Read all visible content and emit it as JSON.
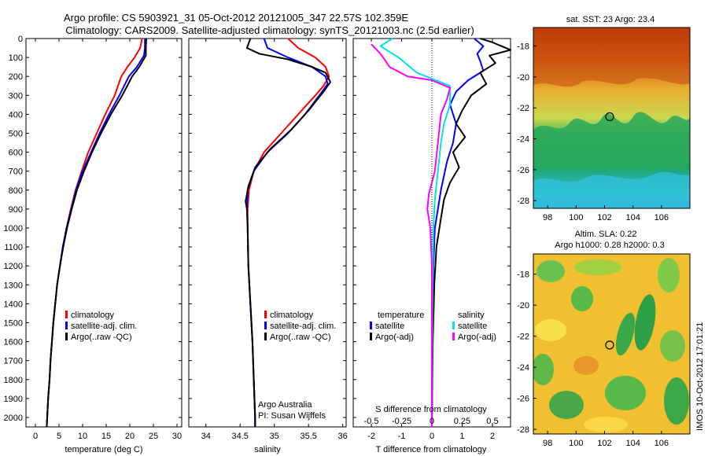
{
  "header": {
    "line1": "Argo profile: CS 5903921_31 05-Oct-2012 20121005_347 22.57S 102.359E",
    "line2": "Climatology: CARS2009. Satellite-adjusted climatology: synTS_20121003.nc (2.5d earlier)"
  },
  "colors": {
    "climatology": "#ff0000",
    "satellite": "#0000ff",
    "argo": "#000000",
    "sat_salinity": "#00e5e5",
    "argo_salinity": "#ff00ff"
  },
  "chart_data": [
    {
      "type": "line",
      "name": "temperature",
      "xlabel": "temperature (deg C)",
      "xlim": [
        -2,
        31
      ],
      "ylim": [
        0,
        2050
      ],
      "xticks": [
        "0",
        "5",
        "10",
        "15",
        "20",
        "25",
        "30"
      ],
      "yticks": [
        "0",
        "100",
        "200",
        "300",
        "400",
        "500",
        "600",
        "700",
        "800",
        "900",
        "1000",
        "1100",
        "1200",
        "1300",
        "1400",
        "1500",
        "1600",
        "1700",
        "1800",
        "1900",
        "2000"
      ],
      "legend": [
        "climatology",
        "satellite-adj. clim.",
        "Argo(..raw -QC)"
      ],
      "series": [
        {
          "name": "climatology",
          "color": "#ff0000",
          "points": [
            [
              22.6,
              0
            ],
            [
              22.2,
              50
            ],
            [
              21.0,
              100
            ],
            [
              19.5,
              150
            ],
            [
              18.2,
              200
            ],
            [
              16.8,
              300
            ],
            [
              14.8,
              400
            ],
            [
              13.0,
              500
            ],
            [
              11.2,
              600
            ],
            [
              9.8,
              700
            ],
            [
              8.5,
              800
            ],
            [
              7.5,
              900
            ],
            [
              6.6,
              1000
            ],
            [
              5.8,
              1100
            ],
            [
              5.2,
              1200
            ],
            [
              4.6,
              1300
            ],
            [
              4.2,
              1400
            ],
            [
              3.8,
              1500
            ],
            [
              3.5,
              1600
            ],
            [
              3.2,
              1700
            ],
            [
              3.0,
              1800
            ],
            [
              2.7,
              1900
            ],
            [
              2.5,
              2000
            ],
            [
              2.4,
              2050
            ]
          ]
        },
        {
          "name": "satellite-adj. clim.",
          "color": "#0000ff",
          "points": [
            [
              23.2,
              0
            ],
            [
              23.2,
              50
            ],
            [
              23.0,
              90
            ],
            [
              21.5,
              150
            ],
            [
              19.8,
              200
            ],
            [
              17.8,
              300
            ],
            [
              15.6,
              400
            ],
            [
              13.6,
              500
            ],
            [
              11.8,
              600
            ],
            [
              10.0,
              700
            ],
            [
              8.6,
              800
            ],
            [
              7.6,
              900
            ],
            [
              6.6,
              1000
            ],
            [
              5.8,
              1100
            ],
            [
              5.2,
              1200
            ],
            [
              4.6,
              1300
            ],
            [
              4.2,
              1400
            ],
            [
              3.8,
              1500
            ],
            [
              3.5,
              1600
            ],
            [
              3.2,
              1700
            ],
            [
              3.0,
              1800
            ],
            [
              2.7,
              1900
            ],
            [
              2.5,
              2000
            ],
            [
              2.4,
              2050
            ]
          ]
        },
        {
          "name": "Argo(..raw -QC)",
          "color": "#000000",
          "points": [
            [
              23.5,
              0
            ],
            [
              23.4,
              50
            ],
            [
              23.4,
              90
            ],
            [
              22.0,
              150
            ],
            [
              20.5,
              200
            ],
            [
              18.4,
              300
            ],
            [
              16.0,
              400
            ],
            [
              13.9,
              500
            ],
            [
              12.0,
              600
            ],
            [
              10.3,
              700
            ],
            [
              8.8,
              800
            ],
            [
              7.7,
              900
            ],
            [
              6.7,
              1000
            ],
            [
              5.9,
              1100
            ],
            [
              5.2,
              1200
            ],
            [
              4.6,
              1300
            ],
            [
              4.2,
              1400
            ],
            [
              3.8,
              1500
            ],
            [
              3.5,
              1600
            ],
            [
              3.2,
              1700
            ],
            [
              3.0,
              1800
            ],
            [
              2.7,
              1900
            ],
            [
              2.5,
              2000
            ],
            [
              2.4,
              2050
            ]
          ]
        }
      ]
    },
    {
      "type": "line",
      "name": "salinity",
      "xlabel": "salinity",
      "xlim": [
        33.75,
        36.05
      ],
      "ylim": [
        0,
        2050
      ],
      "xticks": [
        "34",
        "34.5",
        "35",
        "35.5",
        "36"
      ],
      "legend": [
        "climatology",
        "satellite-adj. clim.",
        "Argo(..raw -QC)"
      ],
      "annotation": [
        "Argo Australia",
        "PI: Susan Wijffels"
      ],
      "series": [
        {
          "name": "climatology",
          "color": "#ff0000",
          "points": [
            [
              35.2,
              0
            ],
            [
              35.35,
              50
            ],
            [
              35.6,
              100
            ],
            [
              35.75,
              150
            ],
            [
              35.8,
              200
            ],
            [
              35.72,
              250
            ],
            [
              35.6,
              300
            ],
            [
              35.35,
              400
            ],
            [
              35.1,
              500
            ],
            [
              34.85,
              600
            ],
            [
              34.7,
              700
            ],
            [
              34.63,
              800
            ],
            [
              34.61,
              900
            ],
            [
              34.61,
              1000
            ],
            [
              34.62,
              1200
            ],
            [
              34.65,
              1400
            ],
            [
              34.68,
              1600
            ],
            [
              34.7,
              1800
            ],
            [
              34.72,
              2000
            ],
            [
              34.72,
              2050
            ]
          ]
        },
        {
          "name": "satellite-adj. clim.",
          "color": "#0000ff",
          "points": [
            [
              34.85,
              0
            ],
            [
              34.9,
              50
            ],
            [
              35.2,
              100
            ],
            [
              35.55,
              150
            ],
            [
              35.75,
              200
            ],
            [
              35.78,
              240
            ],
            [
              35.7,
              280
            ],
            [
              35.45,
              400
            ],
            [
              35.2,
              500
            ],
            [
              34.9,
              600
            ],
            [
              34.7,
              700
            ],
            [
              34.61,
              800
            ],
            [
              34.6,
              900
            ],
            [
              34.61,
              1000
            ],
            [
              34.62,
              1200
            ],
            [
              34.65,
              1400
            ],
            [
              34.68,
              1600
            ],
            [
              34.7,
              1800
            ],
            [
              34.72,
              2000
            ],
            [
              34.72,
              2050
            ]
          ]
        },
        {
          "name": "Argo(..raw -QC)",
          "color": "#000000",
          "points": [
            [
              34.65,
              0
            ],
            [
              34.6,
              50
            ],
            [
              34.78,
              80
            ],
            [
              35.2,
              110
            ],
            [
              35.55,
              150
            ],
            [
              35.75,
              180
            ],
            [
              35.82,
              230
            ],
            [
              35.72,
              280
            ],
            [
              35.5,
              380
            ],
            [
              35.25,
              480
            ],
            [
              34.95,
              580
            ],
            [
              34.72,
              680
            ],
            [
              34.62,
              780
            ],
            [
              34.58,
              860
            ],
            [
              34.6,
              900
            ],
            [
              34.61,
              1000
            ],
            [
              34.62,
              1200
            ],
            [
              34.65,
              1400
            ],
            [
              34.68,
              1600
            ],
            [
              34.7,
              1800
            ],
            [
              34.72,
              2000
            ],
            [
              34.72,
              2050
            ]
          ]
        }
      ]
    },
    {
      "type": "line",
      "name": "differences",
      "xlabel": "T difference from climatology",
      "xlabel2": "S difference from climatology",
      "xlim": [
        -2.6,
        2.6
      ],
      "ylim": [
        0,
        2050
      ],
      "xticks": [
        "-2",
        "-1",
        "0",
        "1",
        "2"
      ],
      "xticks_s": [
        "-0.5",
        "-0.25",
        "0",
        "0.25",
        "0.5"
      ],
      "legend_temperature": [
        "temperature",
        "satellite",
        "Argo(-adj)"
      ],
      "legend_salinity": [
        "salinity",
        "satellite",
        "Argo(-adj)"
      ],
      "series": [
        {
          "name": "temperature satellite",
          "color": "#0000ff",
          "points": [
            [
              1.4,
              0
            ],
            [
              1.7,
              40
            ],
            [
              1.5,
              80
            ],
            [
              1.6,
              120
            ],
            [
              1.7,
              170
            ],
            [
              1.2,
              220
            ],
            [
              0.8,
              280
            ],
            [
              0.6,
              350
            ],
            [
              0.8,
              450
            ],
            [
              0.7,
              550
            ],
            [
              0.5,
              650
            ],
            [
              0.3,
              800
            ],
            [
              0.2,
              900
            ],
            [
              0.1,
              1000
            ],
            [
              0.05,
              1200
            ],
            [
              0.02,
              1500
            ],
            [
              0.0,
              2050
            ]
          ]
        },
        {
          "name": "temperature Argo(-adj)",
          "color": "#000000",
          "points": [
            [
              1.6,
              0
            ],
            [
              2.0,
              20
            ],
            [
              2.6,
              60
            ],
            [
              1.9,
              90
            ],
            [
              2.1,
              130
            ],
            [
              1.6,
              180
            ],
            [
              1.8,
              240
            ],
            [
              1.3,
              300
            ],
            [
              1.0,
              380
            ],
            [
              0.8,
              450
            ],
            [
              1.1,
              520
            ],
            [
              0.7,
              600
            ],
            [
              0.9,
              680
            ],
            [
              0.6,
              760
            ],
            [
              0.4,
              850
            ],
            [
              0.3,
              950
            ],
            [
              0.15,
              1100
            ],
            [
              0.08,
              1300
            ],
            [
              0.03,
              1600
            ],
            [
              0.0,
              2050
            ]
          ]
        },
        {
          "name": "salinity satellite",
          "color": "#00e5e5",
          "points": [
            [
              -1.3,
              0
            ],
            [
              -1.7,
              40
            ],
            [
              -1.1,
              100
            ],
            [
              -0.5,
              180
            ],
            [
              0.6,
              250
            ],
            [
              0.6,
              350
            ],
            [
              0.4,
              450
            ],
            [
              0.3,
              550
            ],
            [
              0.2,
              700
            ],
            [
              0.1,
              850
            ],
            [
              0.05,
              1000
            ],
            [
              0.02,
              1300
            ],
            [
              0.0,
              2050
            ]
          ]
        },
        {
          "name": "salinity Argo(-adj)",
          "color": "#ff00ff",
          "points": [
            [
              -2.0,
              30
            ],
            [
              -1.7,
              80
            ],
            [
              -1.4,
              150
            ],
            [
              -0.8,
              200
            ],
            [
              0.0,
              220
            ],
            [
              0.6,
              260
            ],
            [
              0.5,
              320
            ],
            [
              0.3,
              400
            ],
            [
              0.2,
              550
            ],
            [
              0.1,
              700
            ],
            [
              -0.1,
              820
            ],
            [
              -0.15,
              900
            ],
            [
              -0.05,
              1000
            ],
            [
              0.0,
              1200
            ],
            [
              0.0,
              2050
            ]
          ]
        }
      ]
    },
    {
      "type": "heatmap",
      "name": "sst-map",
      "title": "sat. SST: 23 Argo: 23.4",
      "xlim": [
        97,
        108
      ],
      "ylim": [
        -28.5,
        -16.8
      ],
      "xticks": [
        "98",
        "100",
        "102",
        "104",
        "106"
      ],
      "yticks": [
        "-18",
        "-20",
        "-22",
        "-24",
        "-26",
        "-28"
      ],
      "marker": {
        "lon": 102.36,
        "lat": -22.57
      }
    },
    {
      "type": "heatmap",
      "name": "sla-map",
      "title": "Altim. SLA: 0.22",
      "title2": "Argo h1000: 0.28 h2000: 0.3",
      "xlim": [
        97,
        108
      ],
      "ylim": [
        -28.3,
        -16.7
      ],
      "xticks": [
        "98",
        "100",
        "102",
        "104",
        "106"
      ],
      "yticks": [
        "-18",
        "-20",
        "-22",
        "-24",
        "-26",
        "-28"
      ],
      "marker": {
        "lon": 102.36,
        "lat": -22.57
      }
    }
  ],
  "footer": {
    "stamp": "IMOS 10-Oct-2012 17:01:21"
  }
}
